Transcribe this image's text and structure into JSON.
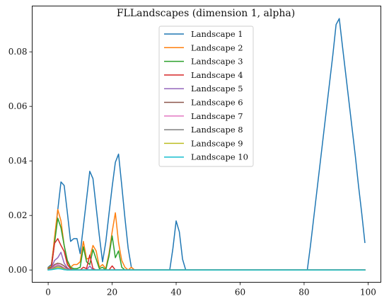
{
  "chart_data": {
    "type": "line",
    "title": "FLLandscapes (dimension 1, alpha)",
    "xlabel": "",
    "ylabel": "",
    "xlim": [
      -5,
      104
    ],
    "ylim": [
      -0.0045,
      0.0968
    ],
    "xticks": [
      0,
      20,
      40,
      60,
      80,
      100
    ],
    "yticks": [
      0.0,
      0.02,
      0.04,
      0.06,
      0.08
    ],
    "ytick_labels": [
      "0.00",
      "0.02",
      "0.04",
      "0.06",
      "0.08"
    ],
    "grid": false,
    "legend_position": "top-center",
    "series": [
      {
        "name": "Landscape 1",
        "color": "#1f77b4",
        "points": [
          [
            0,
            0.001
          ],
          [
            1,
            0.002
          ],
          [
            2,
            0.011
          ],
          [
            3,
            0.022
          ],
          [
            4,
            0.0323
          ],
          [
            5,
            0.031
          ],
          [
            6,
            0.021
          ],
          [
            7,
            0.0105
          ],
          [
            8,
            0.0115
          ],
          [
            9,
            0.0115
          ],
          [
            10,
            0.006
          ],
          [
            11,
            0.016
          ],
          [
            12,
            0.026
          ],
          [
            13,
            0.0362
          ],
          [
            14,
            0.0335
          ],
          [
            15,
            0.023
          ],
          [
            16,
            0.0125
          ],
          [
            17,
            0.003
          ],
          [
            18,
            0.0102
          ],
          [
            19,
            0.0205
          ],
          [
            20,
            0.0305
          ],
          [
            21,
            0.0395
          ],
          [
            22,
            0.0425
          ],
          [
            23,
            0.031
          ],
          [
            24,
            0.019
          ],
          [
            25,
            0.008
          ],
          [
            26,
            0.001
          ],
          [
            27,
            0
          ],
          [
            38,
            0
          ],
          [
            39,
            0.008
          ],
          [
            40,
            0.018
          ],
          [
            41,
            0.014
          ],
          [
            42,
            0.004
          ],
          [
            43,
            0
          ],
          [
            81,
            0
          ],
          [
            82,
            0.009
          ],
          [
            83,
            0.019
          ],
          [
            84,
            0.029
          ],
          [
            85,
            0.039
          ],
          [
            86,
            0.049
          ],
          [
            87,
            0.059
          ],
          [
            88,
            0.069
          ],
          [
            89,
            0.079
          ],
          [
            90,
            0.09
          ],
          [
            91,
            0.0922
          ],
          [
            92,
            0.082
          ],
          [
            93,
            0.072
          ],
          [
            94,
            0.062
          ],
          [
            95,
            0.052
          ],
          [
            96,
            0.042
          ],
          [
            97,
            0.031
          ],
          [
            98,
            0.021
          ],
          [
            99,
            0.0101
          ]
        ]
      },
      {
        "name": "Landscape 2",
        "color": "#ff7f0e",
        "points": [
          [
            0,
            0.0008
          ],
          [
            1,
            0.0015
          ],
          [
            2,
            0.012
          ],
          [
            3,
            0.0222
          ],
          [
            4,
            0.018
          ],
          [
            5,
            0.009
          ],
          [
            6,
            0.003
          ],
          [
            7,
            0.001
          ],
          [
            8,
            0.002
          ],
          [
            9,
            0.002
          ],
          [
            10,
            0.003
          ],
          [
            11,
            0.0105
          ],
          [
            12,
            0.004
          ],
          [
            13,
            0.0045
          ],
          [
            14,
            0.009
          ],
          [
            15,
            0.007
          ],
          [
            16,
            0.001
          ],
          [
            17,
            0.002
          ],
          [
            18,
            0.0005
          ],
          [
            19,
            0.006
          ],
          [
            20,
            0.014
          ],
          [
            21,
            0.021
          ],
          [
            22,
            0.01
          ],
          [
            23,
            0.0035
          ],
          [
            24,
            0.001
          ],
          [
            25,
            0
          ],
          [
            26,
            0.001
          ],
          [
            27,
            0
          ],
          [
            99,
            0
          ]
        ]
      },
      {
        "name": "Landscape 3",
        "color": "#2ca02c",
        "points": [
          [
            0,
            0.0006
          ],
          [
            1,
            0.001
          ],
          [
            2,
            0.01
          ],
          [
            3,
            0.019
          ],
          [
            4,
            0.0155
          ],
          [
            5,
            0.009
          ],
          [
            6,
            0.0035
          ],
          [
            7,
            0.001
          ],
          [
            8,
            0.0005
          ],
          [
            9,
            0.0005
          ],
          [
            10,
            0.001
          ],
          [
            11,
            0.0085
          ],
          [
            12,
            0.003
          ],
          [
            13,
            0.002
          ],
          [
            14,
            0.0075
          ],
          [
            15,
            0.004
          ],
          [
            16,
            0.0005
          ],
          [
            17,
            0.001
          ],
          [
            18,
            0
          ],
          [
            19,
            0.005
          ],
          [
            20,
            0.0125
          ],
          [
            21,
            0.0045
          ],
          [
            22,
            0.007
          ],
          [
            23,
            0.001
          ],
          [
            24,
            0
          ],
          [
            99,
            0
          ]
        ]
      },
      {
        "name": "Landscape 4",
        "color": "#d62728",
        "points": [
          [
            0,
            0.0004
          ],
          [
            1,
            0.0008
          ],
          [
            2,
            0.0098
          ],
          [
            3,
            0.0115
          ],
          [
            4,
            0.009
          ],
          [
            5,
            0.0068
          ],
          [
            6,
            0.002
          ],
          [
            7,
            0.0005
          ],
          [
            8,
            0
          ],
          [
            10,
            0
          ],
          [
            11,
            0.001
          ],
          [
            12,
            0.0005
          ],
          [
            13,
            0.0055
          ],
          [
            14,
            0.0005
          ],
          [
            15,
            0
          ],
          [
            19,
            0
          ],
          [
            20,
            0.0015
          ],
          [
            21,
            0
          ],
          [
            99,
            0
          ]
        ]
      },
      {
        "name": "Landscape 5",
        "color": "#9467bd",
        "points": [
          [
            0,
            0.0003
          ],
          [
            1,
            0.0006
          ],
          [
            2,
            0.0035
          ],
          [
            3,
            0.0045
          ],
          [
            4,
            0.0065
          ],
          [
            5,
            0.0025
          ],
          [
            6,
            0.0008
          ],
          [
            7,
            0
          ],
          [
            12,
            0
          ],
          [
            13,
            0.0015
          ],
          [
            14,
            0
          ],
          [
            99,
            0
          ]
        ]
      },
      {
        "name": "Landscape 6",
        "color": "#8c564b",
        "points": [
          [
            0,
            0.0002
          ],
          [
            1,
            0.0004
          ],
          [
            2,
            0.002
          ],
          [
            3,
            0.0025
          ],
          [
            4,
            0.0022
          ],
          [
            5,
            0.0015
          ],
          [
            6,
            0.0005
          ],
          [
            7,
            0
          ],
          [
            99,
            0
          ]
        ]
      },
      {
        "name": "Landscape 7",
        "color": "#e377c2",
        "points": [
          [
            0,
            0.0001
          ],
          [
            1,
            0.0003
          ],
          [
            2,
            0.0015
          ],
          [
            3,
            0.002
          ],
          [
            4,
            0.0015
          ],
          [
            5,
            0.0008
          ],
          [
            6,
            0.0002
          ],
          [
            7,
            0
          ],
          [
            99,
            0
          ]
        ]
      },
      {
        "name": "Landscape 8",
        "color": "#7f7f7f",
        "points": [
          [
            0,
            0.0001
          ],
          [
            1,
            0.0002
          ],
          [
            2,
            0.001
          ],
          [
            3,
            0.0015
          ],
          [
            4,
            0.0012
          ],
          [
            5,
            0.0005
          ],
          [
            6,
            0
          ],
          [
            99,
            0
          ]
        ]
      },
      {
        "name": "Landscape 9",
        "color": "#bcbd22",
        "points": [
          [
            0,
            0.0001
          ],
          [
            1,
            0.0002
          ],
          [
            2,
            0.0006
          ],
          [
            3,
            0.001
          ],
          [
            4,
            0.0008
          ],
          [
            5,
            0.0003
          ],
          [
            6,
            0
          ],
          [
            99,
            0
          ]
        ]
      },
      {
        "name": "Landscape 10",
        "color": "#17becf",
        "points": [
          [
            0,
            0
          ],
          [
            1,
            0.0001
          ],
          [
            2,
            0.0003
          ],
          [
            3,
            0.0005
          ],
          [
            4,
            0.0004
          ],
          [
            5,
            0.0001
          ],
          [
            6,
            0
          ],
          [
            99,
            0
          ]
        ]
      }
    ]
  }
}
